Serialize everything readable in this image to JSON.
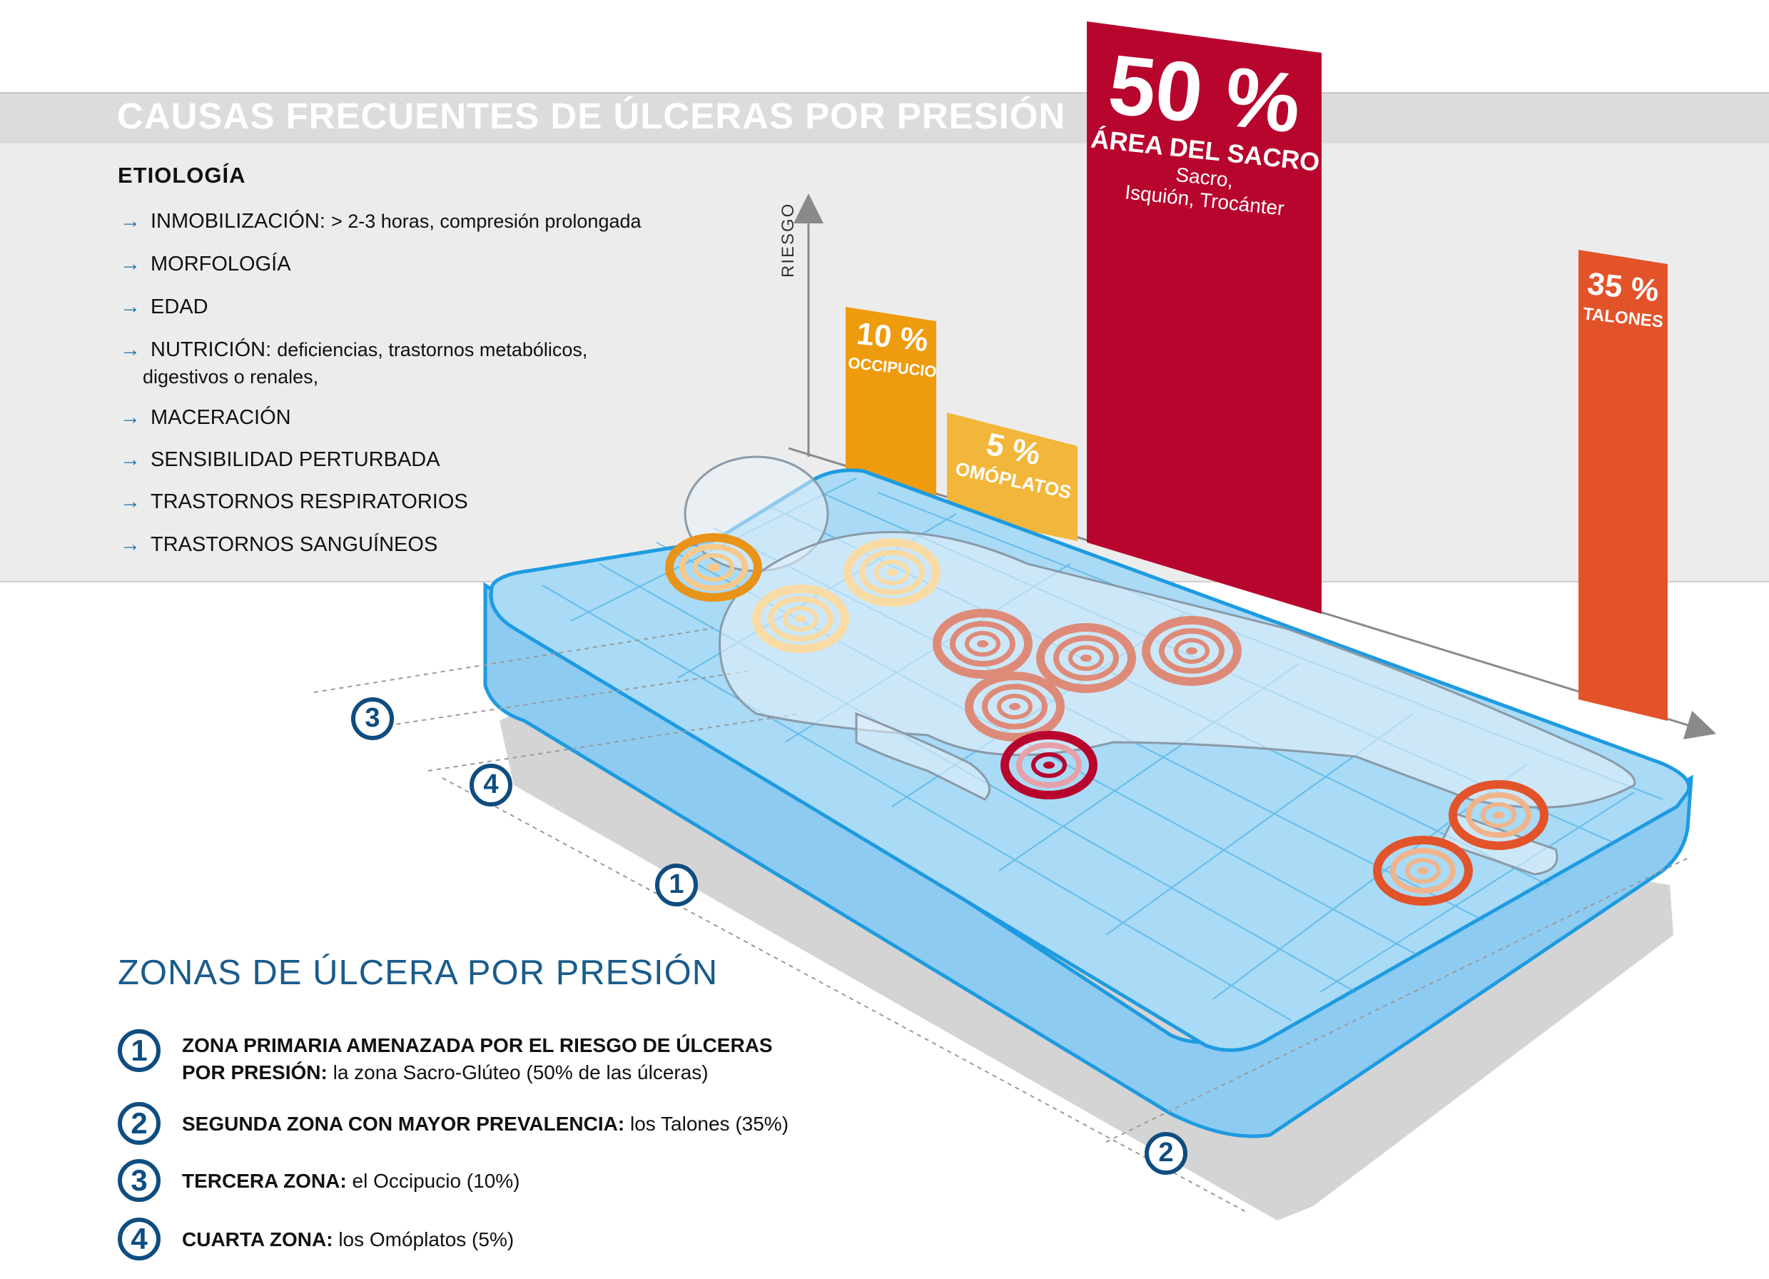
{
  "header": {
    "title": "CAUSAS FRECUENTES DE ÚLCERAS POR PRESIÓN"
  },
  "etiologia": {
    "title": "ETIOLOGÍA",
    "items": [
      {
        "keyword": "INMOBILIZACIÓN:",
        "detail": "> 2-3 horas, compresión prolongada"
      },
      {
        "keyword": "MORFOLOGÍA",
        "detail": ""
      },
      {
        "keyword": "EDAD",
        "detail": ""
      },
      {
        "keyword": "NUTRICIÓN:",
        "detail": "deficiencias, trastornos metabólicos,",
        "detail2": "digestivos o renales,"
      },
      {
        "keyword": "MACERACIÓN",
        "detail": ""
      },
      {
        "keyword": "SENSIBILIDAD PERTURBADA",
        "detail": ""
      },
      {
        "keyword": "TRASTORNOS RESPIRATORIOS",
        "detail": ""
      },
      {
        "keyword": "TRASTORNOS SANGUÍNEOS",
        "detail": ""
      }
    ]
  },
  "risk_axis": {
    "label": "RIESGO"
  },
  "bars": [
    {
      "percent": "10 %",
      "label": "OCCIPUCIO",
      "value": 10,
      "color": "#ee9b0e"
    },
    {
      "percent": "5 %",
      "label": "OMÓPLATOS",
      "value": 5,
      "color": "#f2b73a"
    },
    {
      "percent": "50 %",
      "label": "ÁREA DEL SACRO",
      "sub1": "Sacro,",
      "sub2": "Isquión, Trocánter",
      "value": 50,
      "color": "#b8052e"
    },
    {
      "percent": "35 %",
      "label": "TALONES",
      "value": 35,
      "color": "#e3532a"
    }
  ],
  "diagram_markers": [
    "3",
    "4",
    "1",
    "2"
  ],
  "zones": {
    "title": "ZONAS DE ÚLCERA POR PRESIÓN",
    "items": [
      {
        "number": "1",
        "bold": "ZONA PRIMARIA AMENAZADA POR EL RIESGO DE ÚLCERAS",
        "bold2": "POR PRESIÓN:",
        "normal": "la zona Sacro-Glúteo (50% de las úlceras)"
      },
      {
        "number": "2",
        "bold": "SEGUNDA ZONA CON MAYOR PREVALENCIA:",
        "normal": "los Talones (35%)"
      },
      {
        "number": "3",
        "bold": "TERCERA ZONA:",
        "normal": "el Occipucio (10%)"
      },
      {
        "number": "4",
        "bold": "CUARTA ZONA:",
        "normal": "los Omóplatos (5%)"
      }
    ]
  },
  "colors": {
    "accent_blue": "#0f4d80",
    "mattress": "#9fd3f2",
    "mattress_edge": "#1e9be0"
  }
}
